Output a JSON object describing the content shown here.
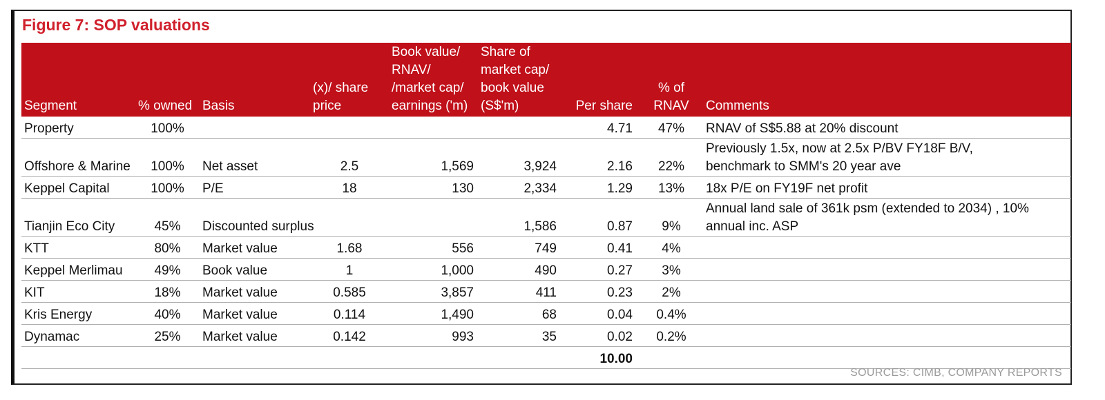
{
  "title": "Figure 7: SOP valuations",
  "columns": [
    {
      "key": "segment",
      "label": "Segment"
    },
    {
      "key": "owned",
      "label": "% owned"
    },
    {
      "key": "basis",
      "label": "Basis"
    },
    {
      "key": "multiple",
      "label": "(x)/ share\nprice"
    },
    {
      "key": "book",
      "label": "Book value/\nRNAV/\n/market cap/\nearnings ('m)"
    },
    {
      "key": "share",
      "label": "Share of\nmarket cap/\nbook value\n(S$'m)"
    },
    {
      "key": "per_share",
      "label": "Per share"
    },
    {
      "key": "pct_rnav",
      "label": "% of\nRNAV"
    },
    {
      "key": "comments",
      "label": "Comments"
    }
  ],
  "rows": [
    {
      "segment": "Property",
      "owned": "100%",
      "basis": "",
      "multiple": "",
      "book": "",
      "share": "",
      "per_share": "4.71",
      "pct_rnav": "47%",
      "comments": "RNAV of S$5.88 at 20% discount",
      "tall": false
    },
    {
      "segment": "Offshore & Marine",
      "owned": "100%",
      "basis": "Net asset",
      "multiple": "2.5",
      "book": "1,569",
      "share": "3,924",
      "per_share": "2.16",
      "pct_rnav": "22%",
      "comments": "Previously 1.5x, now at 2.5x P/BV FY18F B/V,\nbenchmark to SMM's 20 year ave",
      "tall": true
    },
    {
      "segment": "Keppel Capital",
      "owned": "100%",
      "basis": "P/E",
      "multiple": "18",
      "book": "130",
      "share": "2,334",
      "per_share": "1.29",
      "pct_rnav": "13%",
      "comments": "18x P/E on FY19F net profit",
      "tall": false
    },
    {
      "segment": "Tianjin Eco City",
      "owned": "45%",
      "basis": "Discounted surplus",
      "multiple": "",
      "book": "",
      "share": "1,586",
      "per_share": "0.87",
      "pct_rnav": "9%",
      "comments": "Annual land sale of 361k psm (extended to 2034) , 10%\nannual inc. ASP",
      "tall": true
    },
    {
      "segment": "KTT",
      "owned": "80%",
      "basis": "Market value",
      "multiple": "1.68",
      "book": "556",
      "share": "749",
      "per_share": "0.41",
      "pct_rnav": "4%",
      "comments": "",
      "tall": false
    },
    {
      "segment": "Keppel Merlimau",
      "owned": "49%",
      "basis": "Book value",
      "multiple": "1",
      "book": "1,000",
      "share": "490",
      "per_share": "0.27",
      "pct_rnav": "3%",
      "comments": "",
      "tall": false
    },
    {
      "segment": "KIT",
      "owned": "18%",
      "basis": "Market value",
      "multiple": "0.585",
      "book": "3,857",
      "share": "411",
      "per_share": "0.23",
      "pct_rnav": "2%",
      "comments": "",
      "tall": false
    },
    {
      "segment": "Kris Energy",
      "owned": "40%",
      "basis": "Market value",
      "multiple": "0.114",
      "book": "1,490",
      "share": "68",
      "per_share": "0.04",
      "pct_rnav": "0.4%",
      "comments": "",
      "tall": false
    },
    {
      "segment": "Dynamac",
      "owned": "25%",
      "basis": "Market value",
      "multiple": "0.142",
      "book": "993",
      "share": "35",
      "per_share": "0.02",
      "pct_rnav": "0.2%",
      "comments": "",
      "tall": false
    }
  ],
  "total": {
    "per_share": "10.00"
  },
  "sources": "SOURCES: CIMB, COMPANY REPORTS",
  "colors": {
    "header_bg": "#c0101a",
    "title": "#d0202c"
  }
}
